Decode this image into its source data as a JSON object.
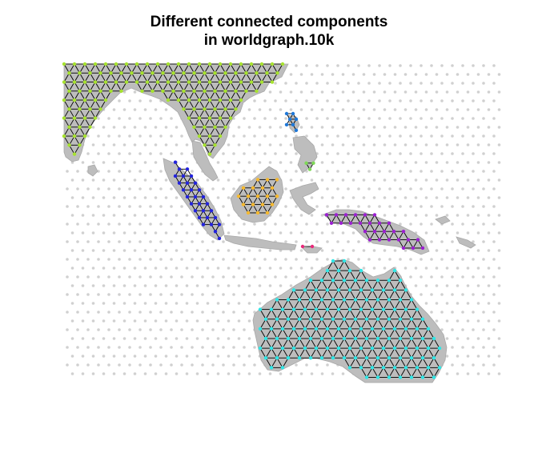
{
  "title": {
    "line1": "Different connected components",
    "line2": "in worldgraph.10k"
  },
  "map": {
    "region": "Southeast Asia and Australia",
    "background_grid_color": "#d0d0d0",
    "land_color": "#bdbdbd",
    "edge_color": "#000000",
    "components": [
      {
        "name": "mainland-southeast-asia",
        "color": "#a6e22e"
      },
      {
        "name": "sumatra",
        "color": "#2222dd"
      },
      {
        "name": "borneo",
        "color": "#f5b82e"
      },
      {
        "name": "philippines-north",
        "color": "#1e78d8"
      },
      {
        "name": "philippines-south",
        "color": "#7ed957"
      },
      {
        "name": "new-guinea",
        "color": "#9b1fd1"
      },
      {
        "name": "timor",
        "color": "#e8287a"
      },
      {
        "name": "australia",
        "color": "#2ee6e6"
      }
    ]
  }
}
